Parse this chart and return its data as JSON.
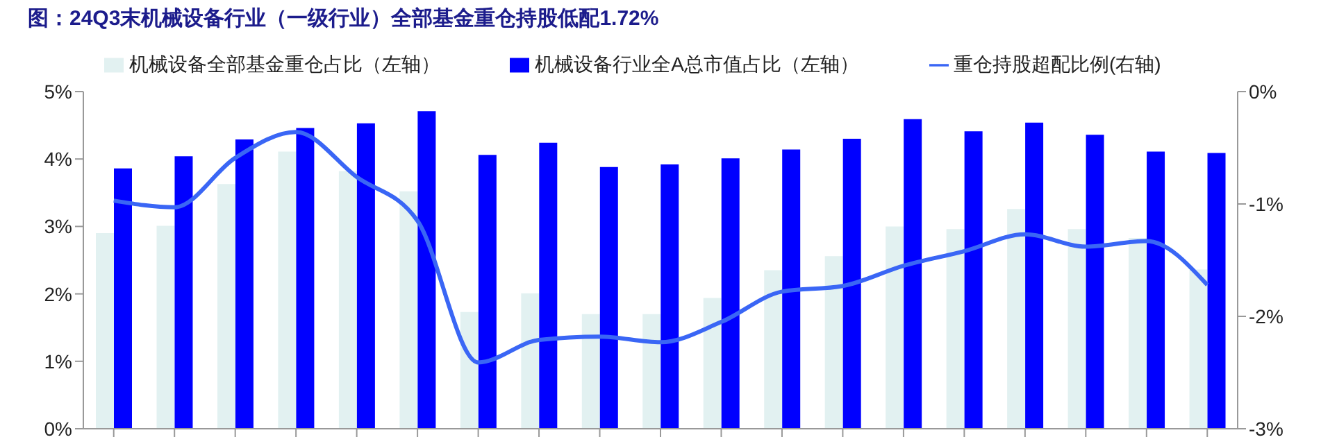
{
  "chart_data": {
    "type": "bar",
    "title": "图：24Q3末机械设备行业（一级行业）全部基金重仓持股低配1.72%",
    "categories": [
      null,
      null,
      null,
      null,
      null,
      null,
      null,
      null,
      null,
      null,
      null,
      null,
      null,
      null,
      null,
      null,
      null,
      null,
      null
    ],
    "series": [
      {
        "name": "机械设备全部基金重仓占比（左轴）",
        "color": "#e2f1f1",
        "values": [
          2.9,
          3.01,
          3.63,
          4.11,
          3.82,
          3.52,
          1.73,
          2.01,
          1.7,
          1.7,
          1.94,
          2.35,
          2.56,
          3.0,
          2.96,
          3.26,
          2.96,
          2.83,
          2.36
        ]
      },
      {
        "name": "机械设备行业全A总市值占比（左轴）",
        "color": "#0000ff",
        "values": [
          3.86,
          4.04,
          4.29,
          4.46,
          4.53,
          4.71,
          4.06,
          4.24,
          3.88,
          3.92,
          4.01,
          4.14,
          4.3,
          4.59,
          4.41,
          4.54,
          4.36,
          4.11,
          4.09
        ]
      },
      {
        "name": "重仓持股超配比例(右轴)",
        "type": "line",
        "axis": "y2",
        "color": "#3a66f5",
        "values": [
          -0.97,
          -1.03,
          -0.59,
          -0.36,
          -0.76,
          -1.15,
          -2.41,
          -2.21,
          -2.18,
          -2.23,
          -2.05,
          -1.78,
          -1.73,
          -1.55,
          -1.42,
          -1.27,
          -1.38,
          -1.33,
          -1.72
        ]
      }
    ],
    "ylim": [
      0,
      5
    ],
    "yticks": [
      {
        "value": 0,
        "label": "0%"
      },
      {
        "value": 1,
        "label": "1%"
      },
      {
        "value": 2,
        "label": "2%"
      },
      {
        "value": 3,
        "label": "3%"
      },
      {
        "value": 4,
        "label": "4%"
      },
      {
        "value": 5,
        "label": "5%"
      }
    ],
    "y2lim": [
      -3,
      0
    ],
    "y2ticks": [
      {
        "value": -3,
        "label": "-3%"
      },
      {
        "value": -2,
        "label": "-2%"
      },
      {
        "value": -1,
        "label": "-1%"
      },
      {
        "value": 0,
        "label": "0%"
      }
    ],
    "legend": "top",
    "grid": false,
    "marker": "none",
    "line_style": "solid"
  }
}
